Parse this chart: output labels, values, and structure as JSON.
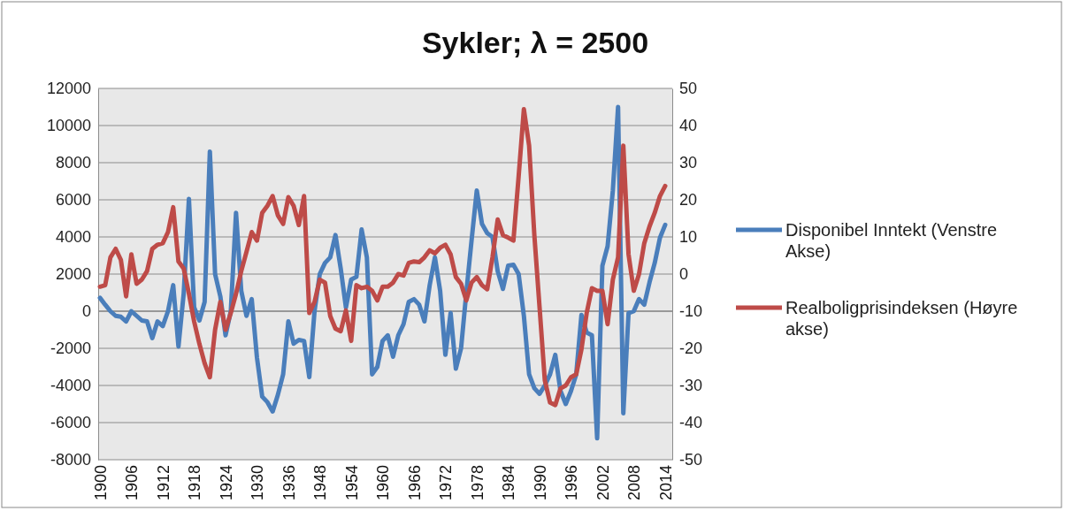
{
  "chart_data": {
    "type": "line",
    "title": "Sykler; λ = 2500",
    "categories": [
      "1900",
      null,
      null,
      null,
      null,
      null,
      "1906",
      null,
      null,
      null,
      null,
      null,
      "1912",
      null,
      null,
      null,
      null,
      null,
      "1918",
      null,
      null,
      null,
      null,
      null,
      "1924",
      null,
      null,
      null,
      null,
      null,
      "1930",
      null,
      null,
      null,
      null,
      null,
      "1936",
      null,
      null,
      null,
      null,
      null,
      "1948",
      null,
      null,
      null,
      null,
      null,
      "1954",
      null,
      null,
      null,
      null,
      null,
      "1960",
      null,
      null,
      null,
      null,
      null,
      "1966",
      null,
      null,
      null,
      null,
      null,
      "1972",
      null,
      null,
      null,
      null,
      null,
      "1978",
      null,
      null,
      null,
      null,
      null,
      "1984",
      null,
      null,
      null,
      null,
      null,
      "1990",
      null,
      null,
      null,
      null,
      null,
      "1996",
      null,
      null,
      null,
      null,
      null,
      "2002",
      null,
      null,
      null,
      null,
      null,
      "2008",
      null,
      null,
      null,
      null,
      null,
      "2014"
    ],
    "series": [
      {
        "name": "Disponibel Inntekt (Venstre Akse)",
        "color": "#4a7ebb",
        "values": [
          720,
          350,
          0,
          -250,
          -300,
          -550,
          0,
          -250,
          -500,
          -550,
          -1450,
          -550,
          -800,
          0,
          1400,
          -1900,
          950,
          6050,
          200,
          -500,
          500,
          8600,
          2000,
          800,
          -1300,
          0,
          5300,
          1100,
          -250,
          650,
          -2500,
          -4600,
          -4900,
          -5400,
          -4500,
          -3400,
          -550,
          -1750,
          -1550,
          -1600,
          -3550,
          0,
          2000,
          2600,
          2900,
          4100,
          2300,
          200,
          1700,
          1850,
          4400,
          2900,
          -3400,
          -3000,
          -1600,
          -1300,
          -2450,
          -1300,
          -700,
          500,
          650,
          350,
          -550,
          1400,
          2900,
          1100,
          -2350,
          -100,
          -3100,
          -2000,
          1000,
          3800,
          6500,
          4700,
          4200,
          4000,
          2150,
          1200,
          2450,
          2500,
          2000,
          -250,
          -3400,
          -4150,
          -4450,
          -4000,
          -3400,
          -2350,
          -4300,
          -5000,
          -4300,
          -3400,
          -200,
          -1150,
          -1300,
          -6850,
          2450,
          3500,
          6500,
          11000,
          -5500,
          -100,
          0,
          650,
          350,
          1550,
          2600,
          3950,
          4650
        ]
      },
      {
        "name": "Realboligprisindeksen (Høyre akse)",
        "color": "#be4b48",
        "axis": "y2",
        "values": [
          -3.4,
          -3,
          4.5,
          6.8,
          3.8,
          -6,
          5.3,
          -2.6,
          -1.5,
          0.8,
          6.8,
          7.9,
          8.3,
          11.3,
          18,
          3.4,
          1.5,
          -5.3,
          -12.8,
          -18.8,
          -24,
          -27.8,
          -15,
          -7.5,
          -15,
          -10.5,
          -5.3,
          0.8,
          6,
          11.3,
          9,
          16.5,
          18.4,
          21,
          15.8,
          13.5,
          20.7,
          18.4,
          13.2,
          21,
          -10.5,
          -7.5,
          -1.5,
          -2.3,
          -11.3,
          -14.7,
          -15.4,
          -9.8,
          -18,
          -3,
          -3.8,
          -3.4,
          -4.5,
          -7.1,
          -3.4,
          -3.4,
          -2.3,
          0,
          -0.4,
          3,
          3.4,
          3.2,
          4.5,
          6.4,
          5.6,
          7.1,
          7.9,
          5.3,
          -0.8,
          -2.6,
          -7.1,
          -2.3,
          -0.8,
          -3,
          -4.1,
          4.5,
          14.7,
          10.5,
          9.8,
          9,
          26.3,
          44.4,
          34.6,
          10.5,
          -9,
          -28.6,
          -34.6,
          -35.3,
          -30.8,
          -30,
          -27.8,
          -27,
          -20.3,
          -10.5,
          -3.8,
          -4.5,
          -4.5,
          -13.5,
          -1.5,
          4.5,
          34.6,
          5.3,
          -4.5,
          0,
          8.3,
          12.8,
          16.5,
          21,
          23.7
        ]
      }
    ],
    "ylim": [
      -8000,
      12000
    ],
    "yticks": [
      -8000,
      -6000,
      -4000,
      -2000,
      0,
      2000,
      4000,
      6000,
      8000,
      10000,
      12000
    ],
    "y2lim": [
      -50,
      50
    ],
    "y2ticks": [
      -50,
      -40,
      -30,
      -20,
      -10,
      0,
      10,
      20,
      30,
      40,
      50
    ],
    "grid": "y",
    "legend": "right",
    "marker": "none",
    "line_style": "solid"
  }
}
